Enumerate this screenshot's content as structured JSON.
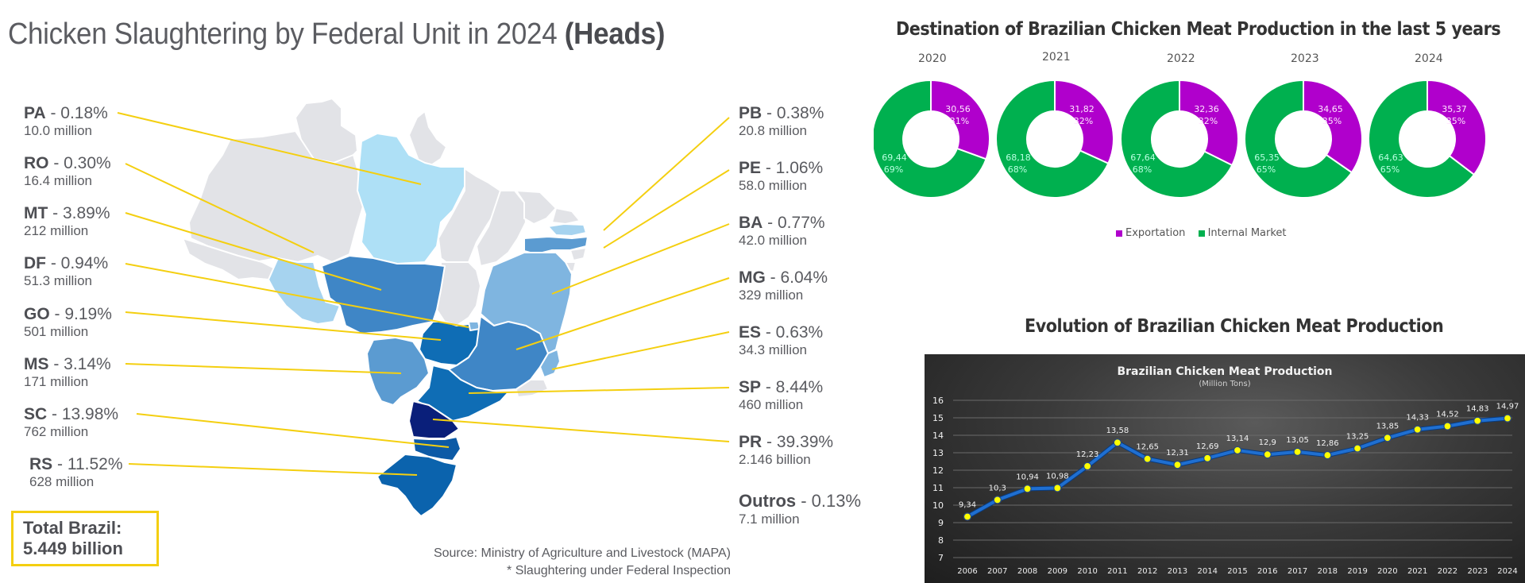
{
  "map_section": {
    "title_regular": "Chicken Slaughtering by Federal Unit in 2024 ",
    "title_bold": "(Heads)",
    "left_labels": [
      {
        "code": "PA",
        "pct": " - 0.18%",
        "heads": "10.0 million"
      },
      {
        "code": "RO",
        "pct": " - 0.30%",
        "heads": "16.4 million"
      },
      {
        "code": "MT",
        "pct": " - 3.89%",
        "heads": "212 million"
      },
      {
        "code": "DF",
        "pct": " - 0.94%",
        "heads": "51.3 million"
      },
      {
        "code": "GO",
        "pct": " - 9.19%",
        "heads": "501 million"
      },
      {
        "code": "MS",
        "pct": " - 3.14%",
        "heads": "171 million"
      },
      {
        "code": "SC",
        "pct": " - 13.98%",
        "heads": "762 million"
      },
      {
        "code": "RS",
        "pct": " - 11.52%",
        "heads": "628 million"
      }
    ],
    "right_labels": [
      {
        "code": "PB",
        "pct": " - 0.38%",
        "heads": "20.8 million"
      },
      {
        "code": "PE",
        "pct": " - 1.06%",
        "heads": "58.0 million"
      },
      {
        "code": "BA",
        "pct": " - 0.77%",
        "heads": "42.0 million"
      },
      {
        "code": "MG",
        "pct": " - 6.04%",
        "heads": "329 million"
      },
      {
        "code": "ES",
        "pct": " - 0.63%",
        "heads": "34.3 million"
      },
      {
        "code": "SP",
        "pct": " - 8.44%",
        "heads": "460 million"
      },
      {
        "code": "PR",
        "pct": " - 39.39%",
        "heads": "2.146 billion"
      },
      {
        "code": "Outros",
        "pct": " - 0.13%",
        "heads": "7.1 million"
      }
    ],
    "total_line1": "Total Brazil:",
    "total_line2": "5.449 billion",
    "source_line1": "Source: Ministry of Agriculture and Livestock (MAPA)",
    "source_line2": "* Slaughtering under Federal Inspection",
    "colors": {
      "leader_line": "#f4cf10",
      "no_data": "#e2e3e7",
      "light": "#aee0f6",
      "light2": "#a6d3ef",
      "mid_light": "#7fb5e0",
      "mid": "#5b9bd1",
      "mid_dark": "#3f86c6",
      "dark": "#0f6db5",
      "darker": "#0c5aa6",
      "darkest": "#0a1f7a"
    }
  },
  "chart_data": [
    {
      "type": "pie",
      "variant": "donut-multiple",
      "title": "Destination of Brazilian Chicken Meat Production in the last 5 years",
      "categories": [
        "2020",
        "2021",
        "2022",
        "2023",
        "2024"
      ],
      "series": [
        {
          "name": "Exportation",
          "color": "#b000cc",
          "values": [
            30.56,
            31.82,
            32.36,
            34.65,
            35.37
          ],
          "value_labels": [
            "30,56",
            "31,82",
            "32,36",
            "34,65",
            "35,37"
          ],
          "pct_labels": [
            "31%",
            "32%",
            "32%",
            "35%",
            "35%"
          ]
        },
        {
          "name": "Internal Market",
          "color": "#00b04f",
          "values": [
            69.44,
            68.18,
            67.64,
            65.35,
            64.63
          ],
          "value_labels": [
            "69,44",
            "68,18",
            "67,64",
            "65,35",
            "64,63"
          ],
          "pct_labels": [
            "69%",
            "68%",
            "68%",
            "65%",
            "65%"
          ]
        }
      ],
      "legend": "bottom"
    },
    {
      "type": "line",
      "section_title": "Evolution of Brazilian Chicken Meat Production",
      "title": "Brazilian Chicken Meat Production",
      "subtitle": "(Million Tons)",
      "x": [
        "2006",
        "2007",
        "2008",
        "2009",
        "2010",
        "2011",
        "2012",
        "2013",
        "2014",
        "2015",
        "2016",
        "2017",
        "2018",
        "2019",
        "2020",
        "2021",
        "2022",
        "2023",
        "2024"
      ],
      "series": [
        {
          "name": "Production",
          "values": [
            9.34,
            10.3,
            10.94,
            10.98,
            12.23,
            13.58,
            12.65,
            12.31,
            12.69,
            13.14,
            12.9,
            13.05,
            12.86,
            13.25,
            13.85,
            14.33,
            14.52,
            14.83,
            14.97
          ],
          "value_labels": [
            "9,34",
            "10,3",
            "10,94",
            "10,98",
            "12,23",
            "13,58",
            "12,65",
            "12,31",
            "12,69",
            "13,14",
            "12,9",
            "13,05",
            "12,86",
            "13,25",
            "13,85",
            "14,33",
            "14,52",
            "14,83",
            "14,97"
          ],
          "line_color": "#1f6fd1",
          "marker_color": "#ffff00"
        }
      ],
      "yticks": [
        "7",
        "8",
        "9",
        "10",
        "11",
        "12",
        "13",
        "14",
        "15",
        "16"
      ],
      "ylim": [
        7,
        16
      ],
      "grid": true,
      "xlabel": "",
      "ylabel": ""
    }
  ]
}
